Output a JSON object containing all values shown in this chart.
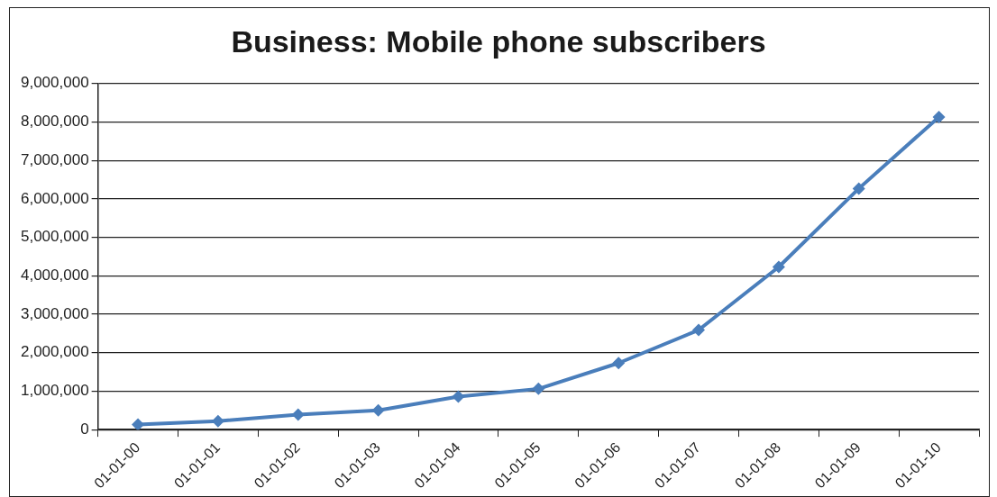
{
  "chart_data": {
    "type": "line",
    "title": "Business: Mobile phone subscribers",
    "categories": [
      "01-01-00",
      "01-01-01",
      "01-01-02",
      "01-01-03",
      "01-01-04",
      "01-01-05",
      "01-01-06",
      "01-01-07",
      "01-01-08",
      "01-01-09",
      "01-01-10"
    ],
    "series": [
      {
        "color": "#4a7ebb",
        "values": [
          130000,
          220000,
          390000,
          500000,
          860000,
          1060000,
          1730000,
          2590000,
          4230000,
          6270000,
          8130000
        ]
      }
    ],
    "ylim": [
      0,
      9000000
    ],
    "yticks": [
      {
        "value": 0,
        "label": "0"
      },
      {
        "value": 1000000,
        "label": "1,000,000"
      },
      {
        "value": 2000000,
        "label": "2,000,000"
      },
      {
        "value": 3000000,
        "label": "3,000,000"
      },
      {
        "value": 4000000,
        "label": "4,000,000"
      },
      {
        "value": 5000000,
        "label": "5,000,000"
      },
      {
        "value": 6000000,
        "label": "6,000,000"
      },
      {
        "value": 7000000,
        "label": "7,000,000"
      },
      {
        "value": 8000000,
        "label": "8,000,000"
      },
      {
        "value": 9000000,
        "label": "9,000,000"
      }
    ],
    "grid": "y",
    "marker": "diamond"
  }
}
